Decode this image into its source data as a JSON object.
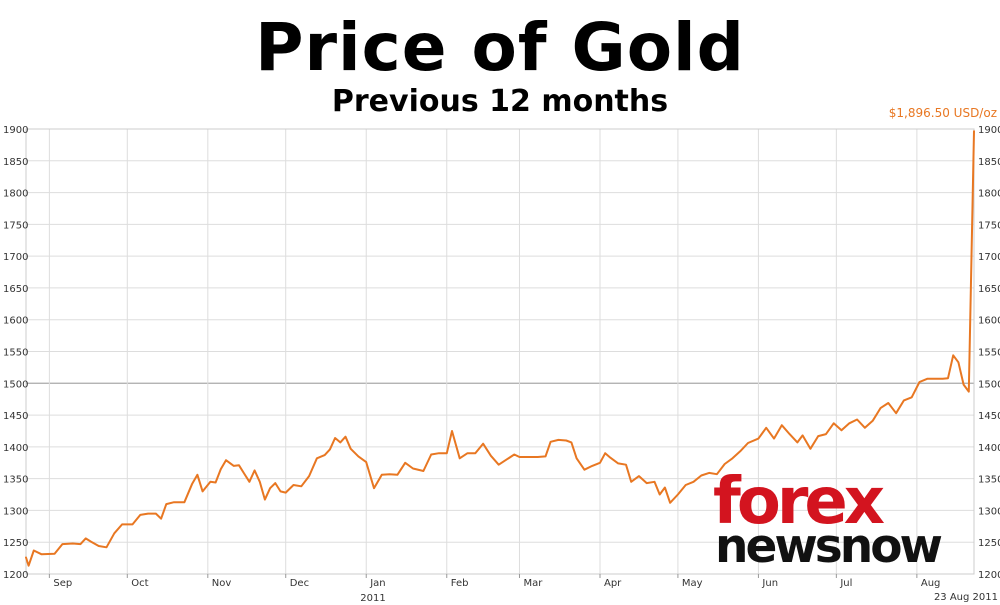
{
  "header": {
    "title": "Price of Gold",
    "subtitle": "Previous 12 months"
  },
  "annotation": {
    "current_price": "$1,896.50 USD/oz"
  },
  "logo": {
    "line1": "forex",
    "line2": "newsnow"
  },
  "colors": {
    "series": "#e87722",
    "grid": "#dddddd",
    "baseline": "#aaaaaa",
    "logo_red": "#d3141f"
  },
  "chart_data": {
    "type": "line",
    "title": "Price of Gold",
    "subtitle": "Previous 12 months",
    "xlabel": "",
    "ylabel": "",
    "ylim": [
      1200,
      1900
    ],
    "yticks": [
      1200,
      1250,
      1300,
      1350,
      1400,
      1450,
      1500,
      1550,
      1600,
      1650,
      1700,
      1750,
      1800,
      1850,
      1900
    ],
    "y_axes": "both",
    "reference_line": 1500,
    "grid": true,
    "x_range": [
      "2010-08-23",
      "2011-08-23"
    ],
    "x_ticks": [
      {
        "label": "Sep",
        "date": "2010-09-01"
      },
      {
        "label": "Oct",
        "date": "2010-10-01"
      },
      {
        "label": "Nov",
        "date": "2010-11-01"
      },
      {
        "label": "Dec",
        "date": "2010-12-01"
      },
      {
        "label": "Jan",
        "date": "2011-01-01"
      },
      {
        "label": "Feb",
        "date": "2011-02-01"
      },
      {
        "label": "Mar",
        "date": "2011-03-01"
      },
      {
        "label": "Apr",
        "date": "2011-04-01"
      },
      {
        "label": "May",
        "date": "2011-05-01"
      },
      {
        "label": "Jun",
        "date": "2011-06-01"
      },
      {
        "label": "Jul",
        "date": "2011-07-01"
      },
      {
        "label": "Aug",
        "date": "2011-08-01"
      }
    ],
    "year_label": {
      "text": "2011",
      "date": "2011-01-01"
    },
    "end_label": {
      "text": "23 Aug 2011",
      "date": "2011-08-23"
    },
    "series": [
      {
        "color": "#e87722",
        "points": [
          [
            "2010-08-23",
            1226
          ],
          [
            "2010-08-24",
            1213
          ],
          [
            "2010-08-26",
            1237
          ],
          [
            "2010-08-29",
            1231
          ],
          [
            "2010-09-03",
            1232
          ],
          [
            "2010-09-06",
            1247
          ],
          [
            "2010-09-10",
            1248
          ],
          [
            "2010-09-13",
            1247
          ],
          [
            "2010-09-15",
            1256
          ],
          [
            "2010-09-17",
            1251
          ],
          [
            "2010-09-20",
            1244
          ],
          [
            "2010-09-23",
            1242
          ],
          [
            "2010-09-26",
            1264
          ],
          [
            "2010-09-29",
            1278
          ],
          [
            "2010-10-03",
            1278
          ],
          [
            "2010-10-06",
            1293
          ],
          [
            "2010-10-09",
            1295
          ],
          [
            "2010-10-12",
            1295
          ],
          [
            "2010-10-14",
            1287
          ],
          [
            "2010-10-16",
            1310
          ],
          [
            "2010-10-19",
            1313
          ],
          [
            "2010-10-23",
            1313
          ],
          [
            "2010-10-26",
            1342
          ],
          [
            "2010-10-28",
            1356
          ],
          [
            "2010-10-30",
            1330
          ],
          [
            "2010-11-02",
            1345
          ],
          [
            "2010-11-04",
            1344
          ],
          [
            "2010-11-06",
            1365
          ],
          [
            "2010-11-08",
            1379
          ],
          [
            "2010-11-11",
            1370
          ],
          [
            "2010-11-13",
            1371
          ],
          [
            "2010-11-15",
            1358
          ],
          [
            "2010-11-17",
            1345
          ],
          [
            "2010-11-19",
            1363
          ],
          [
            "2010-11-21",
            1345
          ],
          [
            "2010-11-23",
            1317
          ],
          [
            "2010-11-25",
            1335
          ],
          [
            "2010-11-27",
            1343
          ],
          [
            "2010-11-29",
            1330
          ],
          [
            "2010-12-01",
            1328
          ],
          [
            "2010-12-04",
            1340
          ],
          [
            "2010-12-07",
            1338
          ],
          [
            "2010-12-10",
            1354
          ],
          [
            "2010-12-13",
            1382
          ],
          [
            "2010-12-16",
            1387
          ],
          [
            "2010-12-18",
            1396
          ],
          [
            "2010-12-20",
            1414
          ],
          [
            "2010-12-22",
            1407
          ],
          [
            "2010-12-24",
            1416
          ],
          [
            "2010-12-26",
            1397
          ],
          [
            "2010-12-29",
            1385
          ],
          [
            "2011-01-01",
            1376
          ],
          [
            "2011-01-04",
            1335
          ],
          [
            "2011-01-07",
            1356
          ],
          [
            "2011-01-10",
            1357
          ],
          [
            "2011-01-13",
            1356
          ],
          [
            "2011-01-16",
            1375
          ],
          [
            "2011-01-19",
            1366
          ],
          [
            "2011-01-23",
            1362
          ],
          [
            "2011-01-26",
            1388
          ],
          [
            "2011-01-29",
            1390
          ],
          [
            "2011-02-01",
            1390
          ],
          [
            "2011-02-03",
            1425
          ],
          [
            "2011-02-06",
            1382
          ],
          [
            "2011-02-09",
            1390
          ],
          [
            "2011-02-12",
            1390
          ],
          [
            "2011-02-15",
            1405
          ],
          [
            "2011-02-18",
            1386
          ],
          [
            "2011-02-21",
            1372
          ],
          [
            "2011-02-24",
            1380
          ],
          [
            "2011-02-27",
            1388
          ],
          [
            "2011-03-01",
            1384
          ],
          [
            "2011-03-05",
            1384
          ],
          [
            "2011-03-08",
            1384
          ],
          [
            "2011-03-11",
            1385
          ],
          [
            "2011-03-13",
            1408
          ],
          [
            "2011-03-16",
            1411
          ],
          [
            "2011-03-19",
            1410
          ],
          [
            "2011-03-21",
            1407
          ],
          [
            "2011-03-23",
            1382
          ],
          [
            "2011-03-26",
            1364
          ],
          [
            "2011-03-29",
            1370
          ],
          [
            "2011-04-01",
            1375
          ],
          [
            "2011-04-03",
            1390
          ],
          [
            "2011-04-05",
            1383
          ],
          [
            "2011-04-08",
            1374
          ],
          [
            "2011-04-11",
            1372
          ],
          [
            "2011-04-13",
            1345
          ],
          [
            "2011-04-16",
            1354
          ],
          [
            "2011-04-19",
            1343
          ],
          [
            "2011-04-22",
            1345
          ],
          [
            "2011-04-24",
            1325
          ],
          [
            "2011-04-26",
            1336
          ],
          [
            "2011-04-28",
            1312
          ],
          [
            "2011-05-01",
            1325
          ],
          [
            "2011-05-04",
            1340
          ],
          [
            "2011-05-07",
            1345
          ],
          [
            "2011-05-10",
            1355
          ],
          [
            "2011-05-13",
            1359
          ],
          [
            "2011-05-16",
            1357
          ],
          [
            "2011-05-19",
            1373
          ],
          [
            "2011-05-22",
            1382
          ],
          [
            "2011-05-25",
            1393
          ],
          [
            "2011-05-28",
            1406
          ],
          [
            "2011-06-01",
            1413
          ],
          [
            "2011-06-04",
            1430
          ],
          [
            "2011-06-07",
            1413
          ],
          [
            "2011-06-10",
            1434
          ],
          [
            "2011-06-13",
            1420
          ],
          [
            "2011-06-16",
            1407
          ],
          [
            "2011-06-18",
            1418
          ],
          [
            "2011-06-21",
            1397
          ],
          [
            "2011-06-24",
            1417
          ],
          [
            "2011-06-27",
            1420
          ],
          [
            "2011-06-30",
            1437
          ],
          [
            "2011-07-03",
            1426
          ],
          [
            "2011-07-06",
            1437
          ],
          [
            "2011-07-09",
            1443
          ],
          [
            "2011-07-12",
            1430
          ],
          [
            "2011-07-15",
            1441
          ],
          [
            "2011-07-18",
            1461
          ],
          [
            "2011-07-21",
            1469
          ],
          [
            "2011-07-24",
            1453
          ],
          [
            "2011-07-27",
            1473
          ],
          [
            "2011-07-30",
            1478
          ],
          [
            "2011-08-02",
            1502
          ],
          [
            "2011-08-05",
            1507
          ],
          [
            "2011-08-08",
            1507
          ],
          [
            "2011-08-11",
            1507
          ],
          [
            "2011-08-13",
            1508
          ],
          [
            "2011-08-15",
            1544
          ],
          [
            "2011-08-17",
            1533
          ],
          [
            "2011-08-19",
            1498
          ],
          [
            "2011-08-21",
            1487
          ],
          [
            "2011-08-23",
            1896.5
          ]
        ]
      }
    ],
    "plot_points": [
      [
        1226,
        0.0
      ],
      [
        1213,
        0.003
      ],
      [
        1237,
        0.008
      ],
      [
        1231,
        0.017
      ],
      [
        1232,
        0.031
      ],
      [
        1247,
        0.039
      ],
      [
        1248,
        0.05
      ],
      [
        1247,
        0.058
      ],
      [
        1256,
        0.064
      ],
      [
        1251,
        0.07
      ],
      [
        1244,
        0.078
      ],
      [
        1242,
        0.086
      ],
      [
        1264,
        0.095
      ],
      [
        1278,
        0.103
      ],
      [
        1278,
        0.115
      ],
      [
        1293,
        0.123
      ],
      [
        1295,
        0.131
      ],
      [
        1295,
        0.139
      ],
      [
        1287,
        0.145
      ],
      [
        1310,
        0.15
      ],
      [
        1313,
        0.159
      ],
      [
        1313,
        0.17
      ],
      [
        1342,
        0.178
      ],
      [
        1356,
        0.184
      ],
      [
        1330,
        0.189
      ],
      [
        1345,
        0.198
      ],
      [
        1344,
        0.204
      ],
      [
        1365,
        0.209
      ],
      [
        1379,
        0.215
      ],
      [
        1370,
        0.223
      ],
      [
        1371,
        0.229
      ],
      [
        1358,
        0.234
      ],
      [
        1345,
        0.24
      ],
      [
        1363,
        0.245
      ],
      [
        1345,
        0.251
      ],
      [
        1317,
        0.256
      ],
      [
        1335,
        0.262
      ],
      [
        1343,
        0.267
      ],
      [
        1330,
        0.273
      ],
      [
        1328,
        0.279
      ],
      [
        1340,
        0.287
      ],
      [
        1338,
        0.295
      ],
      [
        1354,
        0.304
      ],
      [
        1382,
        0.312
      ],
      [
        1387,
        0.32
      ],
      [
        1396,
        0.326
      ],
      [
        1414,
        0.331
      ],
      [
        1407,
        0.337
      ],
      [
        1416,
        0.342
      ],
      [
        1397,
        0.348
      ],
      [
        1385,
        0.356
      ],
      [
        1376,
        0.364
      ],
      [
        1335,
        0.373
      ],
      [
        1356,
        0.381
      ],
      [
        1357,
        0.389
      ],
      [
        1356,
        0.398
      ],
      [
        1375,
        0.406
      ],
      [
        1366,
        0.414
      ],
      [
        1362,
        0.425
      ],
      [
        1388,
        0.433
      ],
      [
        1390,
        0.442
      ],
      [
        1390,
        0.45
      ],
      [
        1425,
        0.456
      ],
      [
        1382,
        0.464
      ],
      [
        1390,
        0.472
      ],
      [
        1390,
        0.481
      ],
      [
        1405,
        0.489
      ],
      [
        1386,
        0.497
      ],
      [
        1372,
        0.506
      ],
      [
        1380,
        0.514
      ],
      [
        1388,
        0.522
      ],
      [
        1384,
        0.528
      ],
      [
        1384,
        0.539
      ],
      [
        1384,
        0.547
      ],
      [
        1385,
        0.556
      ],
      [
        1408,
        0.561
      ],
      [
        1411,
        0.57
      ],
      [
        1410,
        0.578
      ],
      [
        1407,
        0.583
      ],
      [
        1382,
        0.589
      ],
      [
        1364,
        0.597
      ],
      [
        1370,
        0.606
      ],
      [
        1375,
        0.614
      ],
      [
        1390,
        0.619
      ],
      [
        1383,
        0.625
      ],
      [
        1374,
        0.633
      ],
      [
        1372,
        0.642
      ],
      [
        1345,
        0.647
      ],
      [
        1354,
        0.656
      ],
      [
        1343,
        0.664
      ],
      [
        1345,
        0.672
      ],
      [
        1325,
        0.678
      ],
      [
        1336,
        0.683
      ],
      [
        1312,
        0.689
      ],
      [
        1325,
        0.697
      ],
      [
        1340,
        0.706
      ],
      [
        1345,
        0.714
      ],
      [
        1355,
        0.722
      ],
      [
        1359,
        0.731
      ],
      [
        1357,
        0.739
      ],
      [
        1373,
        0.747
      ],
      [
        1382,
        0.756
      ],
      [
        1393,
        0.764
      ],
      [
        1406,
        0.772
      ],
      [
        1413,
        0.783
      ],
      [
        1430,
        0.792
      ],
      [
        1413,
        0.8
      ],
      [
        1434,
        0.808
      ],
      [
        1420,
        0.817
      ],
      [
        1407,
        0.825
      ],
      [
        1418,
        0.831
      ],
      [
        1397,
        0.839
      ],
      [
        1417,
        0.847
      ],
      [
        1420,
        0.856
      ],
      [
        1437,
        0.864
      ],
      [
        1426,
        0.872
      ],
      [
        1437,
        0.881
      ],
      [
        1443,
        0.889
      ],
      [
        1430,
        0.897
      ],
      [
        1441,
        0.906
      ],
      [
        1461,
        0.914
      ],
      [
        1469,
        0.922
      ],
      [
        1453,
        0.931
      ],
      [
        1473,
        0.939
      ],
      [
        1478,
        0.947
      ],
      [
        1502,
        0.956
      ],
      [
        1507,
        0.964
      ],
      [
        1507,
        0.972
      ],
      [
        1507,
        0.981
      ],
      [
        1508,
        0.986
      ],
      [
        1544,
        0.992
      ],
      [
        1533,
        0.997
      ],
      [
        1498,
        1.003
      ],
      [
        1487,
        1.008
      ],
      [
        1896.5,
        1.014
      ]
    ]
  }
}
